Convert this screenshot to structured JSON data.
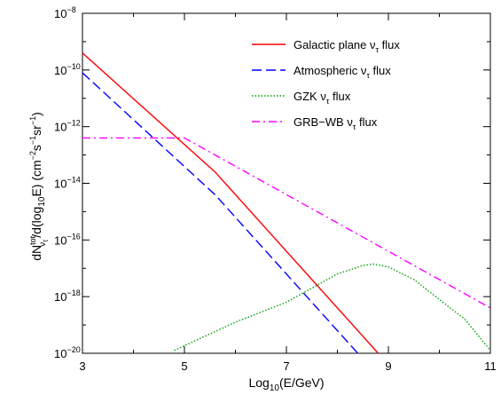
{
  "chart_data": {
    "type": "line",
    "title": "",
    "xlabel": {
      "pre": "Log",
      "sub": "10",
      "post": "(E/GeV)"
    },
    "ylabel": {
      "pre": "dN",
      "sup": "tot",
      "sub": "ν",
      "subsub": "τ",
      "mid": "/d(log",
      "sub2": "10",
      "mid2": "E)  (cm",
      "sup2": "−2",
      "s1": "s",
      "sup3": "−1",
      "s2": "sr",
      "sup4": "−1",
      "end": ")"
    },
    "xlim": [
      3,
      11
    ],
    "ylim_log10": [
      -20,
      -8
    ],
    "xticks": [
      3,
      5,
      7,
      9,
      11
    ],
    "xtick_labels": [
      "3",
      "5",
      "7",
      "9",
      "11"
    ],
    "yticks_log10": [
      -20,
      -18,
      -16,
      -14,
      -12,
      -10,
      -8
    ],
    "ytick_labels": [
      {
        "base": "10",
        "exp": "−20"
      },
      {
        "base": "10",
        "exp": "−18"
      },
      {
        "base": "10",
        "exp": "−16"
      },
      {
        "base": "10",
        "exp": "−14"
      },
      {
        "base": "10",
        "exp": "−12"
      },
      {
        "base": "10",
        "exp": "−10"
      },
      {
        "base": "10",
        "exp": "−8"
      }
    ],
    "y_scale": "log",
    "grid": false,
    "legend_position": "top-right",
    "series": [
      {
        "name": "Galactic plane",
        "legend": {
          "pre": "Galactic plane ν",
          "sub": "τ",
          "post": " flux"
        },
        "color": "#ff0000",
        "dash": "solid",
        "x": [
          3.0,
          5.6,
          8.8
        ],
        "y_log10": [
          -9.4,
          -13.6,
          -20.0
        ]
      },
      {
        "name": "Atmospheric",
        "legend": {
          "pre": "Atmospheric ν",
          "sub": "τ",
          "post": " flux"
        },
        "color": "#0000ff",
        "dash": "dashed",
        "x": [
          3.0,
          5.6,
          8.4
        ],
        "y_log10": [
          -10.1,
          -14.4,
          -20.0
        ]
      },
      {
        "name": "GZK",
        "legend": {
          "pre": "GZK ν",
          "sub": "τ",
          "post": " flux"
        },
        "color": "#00a000",
        "dash": "dotted",
        "x": [
          4.8,
          6.0,
          7.0,
          8.0,
          8.5,
          8.7,
          9.0,
          9.5,
          10.0,
          10.5,
          11.0
        ],
        "y_log10": [
          -19.9,
          -18.9,
          -18.2,
          -17.2,
          -16.9,
          -16.85,
          -16.95,
          -17.4,
          -18.1,
          -18.8,
          -19.9
        ]
      },
      {
        "name": "GRB-WB",
        "legend": {
          "pre": "GRB−WB ν",
          "sub": "τ",
          "post": " flux"
        },
        "color": "#ff00ff",
        "dash": "dashdot",
        "x": [
          3.0,
          5.0,
          11.0
        ],
        "y_log10": [
          -12.4,
          -12.4,
          -18.4
        ]
      }
    ]
  }
}
